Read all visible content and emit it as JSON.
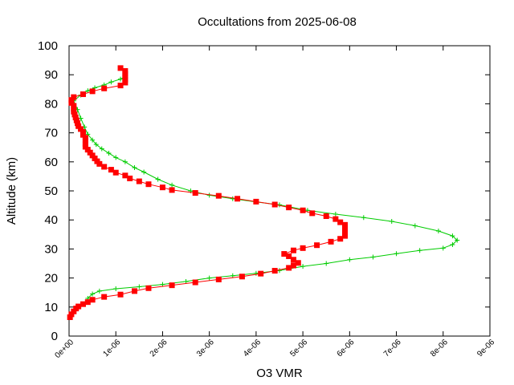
{
  "chart_data": {
    "type": "line",
    "title": "Occultations from 2025-06-08",
    "xlabel": "O3 VMR",
    "ylabel": "Altitude (km)",
    "xlim": [
      0,
      9e-06
    ],
    "ylim": [
      0,
      100
    ],
    "grid": false,
    "legend": "none",
    "x_tick_labels": [
      "0e+00",
      "1e-06",
      "2e-06",
      "3e-06",
      "4e-06",
      "5e-06",
      "6e-06",
      "7e-06",
      "8e-06",
      "9e-06"
    ],
    "y_tick_labels": [
      "0",
      "10",
      "20",
      "30",
      "40",
      "50",
      "60",
      "70",
      "80",
      "90",
      "100"
    ],
    "series": [
      {
        "marker": "plus",
        "color": "#00cc00",
        "points": [
          [
            4e-07,
            13.0
          ],
          [
            5e-07,
            14.5
          ],
          [
            6.5e-07,
            15.5
          ],
          [
            1e-06,
            16.3
          ],
          [
            1.5e-06,
            17.0
          ],
          [
            2e-06,
            17.8
          ],
          [
            2.5e-06,
            18.8
          ],
          [
            3e-06,
            20.0
          ],
          [
            3.5e-06,
            20.8
          ],
          [
            4e-06,
            21.6
          ],
          [
            4.5e-06,
            22.6
          ],
          [
            5e-06,
            24.0
          ],
          [
            5.5e-06,
            25.0
          ],
          [
            6e-06,
            26.3
          ],
          [
            6.5e-06,
            27.2
          ],
          [
            7e-06,
            28.4
          ],
          [
            7.5e-06,
            29.5
          ],
          [
            8e-06,
            30.3
          ],
          [
            8.2e-06,
            31.5
          ],
          [
            8.3e-06,
            33.0
          ],
          [
            8.2e-06,
            34.5
          ],
          [
            7.9e-06,
            36.2
          ],
          [
            7.4e-06,
            38.0
          ],
          [
            6.9e-06,
            39.5
          ],
          [
            6.3e-06,
            40.8
          ],
          [
            5.7e-06,
            42.0
          ],
          [
            5.1e-06,
            43.3
          ],
          [
            4.5e-06,
            45.2
          ],
          [
            4e-06,
            46.2
          ],
          [
            3.5e-06,
            47.3
          ],
          [
            3e-06,
            48.5
          ],
          [
            2.6e-06,
            50.0
          ],
          [
            2.2e-06,
            52.0
          ],
          [
            1.9e-06,
            54.0
          ],
          [
            1.6e-06,
            56.5
          ],
          [
            1.4e-06,
            58.0
          ],
          [
            1.2e-06,
            60.0
          ],
          [
            1e-06,
            61.5
          ],
          [
            8.5e-07,
            63.0
          ],
          [
            7e-07,
            64.5
          ],
          [
            5.8e-07,
            66.0
          ],
          [
            5e-07,
            67.5
          ],
          [
            4e-07,
            69.5
          ],
          [
            3.3e-07,
            72.0
          ],
          [
            2.5e-07,
            75.0
          ],
          [
            1.8e-07,
            78.0
          ],
          [
            1e-07,
            81.0
          ],
          [
            2.5e-07,
            83.0
          ],
          [
            4e-07,
            84.5
          ],
          [
            5.5e-07,
            85.5
          ],
          [
            7.5e-07,
            86.5
          ],
          [
            9e-07,
            87.5
          ],
          [
            1.1e-06,
            88.5
          ],
          [
            1.2e-06,
            89.3
          ]
        ]
      },
      {
        "marker": "filled-square",
        "color": "#ff0000",
        "points": [
          [
            2e-08,
            6.5
          ],
          [
            5e-08,
            7.5
          ],
          [
            1e-07,
            8.5
          ],
          [
            1.5e-07,
            9.5
          ],
          [
            2e-07,
            10.2
          ],
          [
            3e-07,
            11.0
          ],
          [
            4e-07,
            11.7
          ],
          [
            5e-07,
            12.5
          ],
          [
            7.5e-07,
            13.5
          ],
          [
            1.1e-06,
            14.3
          ],
          [
            1.4e-06,
            15.5
          ],
          [
            1.7e-06,
            16.5
          ],
          [
            2.2e-06,
            17.5
          ],
          [
            2.7e-06,
            18.5
          ],
          [
            3.2e-06,
            19.5
          ],
          [
            3.7e-06,
            20.5
          ],
          [
            4.1e-06,
            21.5
          ],
          [
            4.4e-06,
            22.5
          ],
          [
            4.7e-06,
            23.5
          ],
          [
            4.8e-06,
            24.3
          ],
          [
            4.9e-06,
            25.2
          ],
          [
            4.8e-06,
            26.3
          ],
          [
            4.7e-06,
            27.5
          ],
          [
            4.6e-06,
            28.3
          ],
          [
            4.8e-06,
            29.5
          ],
          [
            5e-06,
            30.3
          ],
          [
            5.3e-06,
            31.3
          ],
          [
            5.6e-06,
            32.5
          ],
          [
            5.8e-06,
            33.5
          ],
          [
            5.9e-06,
            34.5
          ],
          [
            5.9e-06,
            35.5
          ],
          [
            5.9e-06,
            36.5
          ],
          [
            5.9e-06,
            37.5
          ],
          [
            5.9e-06,
            38.3
          ],
          [
            5.8e-06,
            39.2
          ],
          [
            5.7e-06,
            40.3
          ],
          [
            5.5e-06,
            41.3
          ],
          [
            5.2e-06,
            42.3
          ],
          [
            5e-06,
            43.3
          ],
          [
            4.7e-06,
            44.3
          ],
          [
            4.4e-06,
            45.3
          ],
          [
            4e-06,
            46.3
          ],
          [
            3.6e-06,
            47.3
          ],
          [
            3.2e-06,
            48.3
          ],
          [
            2.7e-06,
            49.3
          ],
          [
            2.2e-06,
            50.3
          ],
          [
            2e-06,
            51.2
          ],
          [
            1.7e-06,
            52.3
          ],
          [
            1.5e-06,
            53.3
          ],
          [
            1.3e-06,
            54.3
          ],
          [
            1.2e-06,
            55.3
          ],
          [
            1e-06,
            56.3
          ],
          [
            9e-07,
            57.3
          ],
          [
            7.5e-07,
            58.3
          ],
          [
            6.5e-07,
            59.3
          ],
          [
            6e-07,
            60.2
          ],
          [
            5.5e-07,
            61.2
          ],
          [
            5e-07,
            62.2
          ],
          [
            4.5e-07,
            63.2
          ],
          [
            4e-07,
            64.2
          ],
          [
            3.5e-07,
            65.2
          ],
          [
            3.5e-07,
            66.2
          ],
          [
            3.5e-07,
            67.3
          ],
          [
            3.5e-07,
            68.3
          ],
          [
            3e-07,
            69.3
          ],
          [
            3e-07,
            70.3
          ],
          [
            2.5e-07,
            71.3
          ],
          [
            2e-07,
            72.3
          ],
          [
            1.8e-07,
            73.3
          ],
          [
            1.6e-07,
            74.3
          ],
          [
            1.4e-07,
            75.3
          ],
          [
            1.2e-07,
            76.3
          ],
          [
            1e-07,
            77.3
          ],
          [
            1e-07,
            78.3
          ],
          [
            1e-07,
            79.3
          ],
          [
            5e-08,
            80.3
          ],
          [
            5e-08,
            81.3
          ],
          [
            1e-07,
            82.3
          ],
          [
            3e-07,
            83.3
          ],
          [
            5e-07,
            84.3
          ],
          [
            7.5e-07,
            85.3
          ],
          [
            1.1e-06,
            86.3
          ],
          [
            1.2e-06,
            87.3
          ],
          [
            1.2e-06,
            88.3
          ],
          [
            1.2e-06,
            89.3
          ],
          [
            1.2e-06,
            90.3
          ],
          [
            1.2e-06,
            91.3
          ],
          [
            1.1e-06,
            92.3
          ]
        ]
      }
    ]
  }
}
